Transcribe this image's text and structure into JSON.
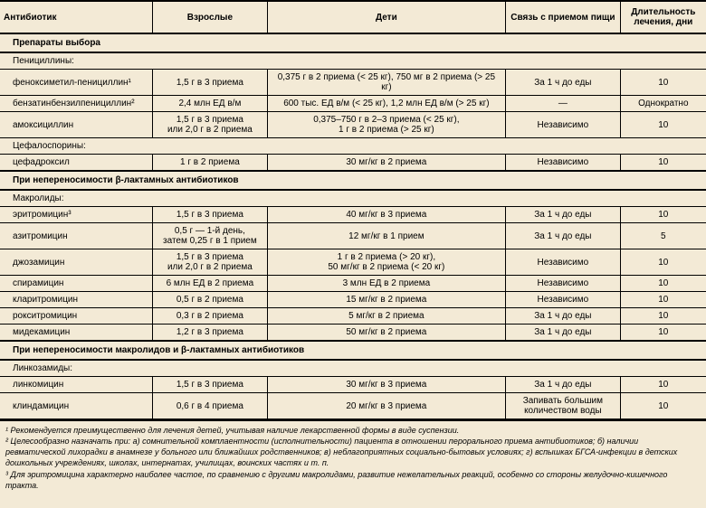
{
  "colors": {
    "background": "#f3ead6",
    "border": "#000000",
    "text": "#000000"
  },
  "headers": {
    "antibiotic": "Антибиотик",
    "adults": "Взрослые",
    "children": "Дети",
    "food": "Связь с приемом пищи",
    "duration": "Длительность лечения, дни"
  },
  "sections": {
    "choice": "Препараты выбора",
    "beta": "При непереносимости β-лактамных антибиотиков",
    "macbeta": "При непереносимости макролидов и β-лактамных антибиотиков"
  },
  "subgroups": {
    "penicillins": "Пенициллины:",
    "cephalo": "Цефалоспорины:",
    "macrolides": "Макролиды:",
    "linco": "Линкозамиды:"
  },
  "rows": {
    "phenoxy": {
      "name": "феноксиметил-пенициллин¹",
      "adults": "1,5 г в 3 приема",
      "children": "0,375 г в 2 приема (< 25 кг), 750 мг в 2 приема (> 25 кг)",
      "food": "За 1 ч до еды",
      "dur": "10"
    },
    "benzathine": {
      "name": "бензатинбензилпенициллин²",
      "adults": "2,4 млн ЕД в/м",
      "children": "600 тыс. ЕД в/м (< 25 кг), 1,2 млн ЕД в/м (> 25 кг)",
      "food": "—",
      "dur": "Однократно"
    },
    "amoxicillin": {
      "name": "амоксициллин",
      "adults": "1,5 г в 3 приема\nили 2,0 г в 2 приема",
      "children": "0,375–750 г в 2–3 приема (< 25 кг),\n1 г в 2 приема (> 25 кг)",
      "food": "Независимо",
      "dur": "10"
    },
    "cefadroxil": {
      "name": "цефадроксил",
      "adults": "1 г в 2 приема",
      "children": "30 мг/кг в 2 приема",
      "food": "Независимо",
      "dur": "10"
    },
    "erythro": {
      "name": "эритромицин³",
      "adults": "1,5 г в 3 приема",
      "children": "40 мг/кг в 3 приема",
      "food": "За 1 ч до еды",
      "dur": "10"
    },
    "azithro": {
      "name": "азитромицин",
      "adults": "0,5 г — 1-й день,\nзатем 0,25 г в 1 прием",
      "children": "12 мг/кг в 1 прием",
      "food": "За 1 ч до еды",
      "dur": "5"
    },
    "josa": {
      "name": "джозамицин",
      "adults": "1,5 г в 3 приема\nили 2,0 г в 2 приема",
      "children": "1 г в 2 приема (> 20 кг),\n50 мг/кг в 2 приема (< 20 кг)",
      "food": "Независимо",
      "dur": "10"
    },
    "spira": {
      "name": "спирамицин",
      "adults": "6 млн ЕД в 2 приема",
      "children": "3 млн ЕД в 2 приема",
      "food": "Независимо",
      "dur": "10"
    },
    "clarithro": {
      "name": "кларитромицин",
      "adults": "0,5 г в 2 приема",
      "children": "15 мг/кг в 2 приема",
      "food": "Независимо",
      "dur": "10"
    },
    "roxithro": {
      "name": "рокситромицин",
      "adults": "0,3 г в 2 приема",
      "children": "5 мг/кг в 2 приема",
      "food": "За 1 ч до еды",
      "dur": "10"
    },
    "mideca": {
      "name": "мидекамицин",
      "adults": "1,2 г в 3 приема",
      "children": "50 мг/кг в 2 приема",
      "food": "За 1 ч до еды",
      "dur": "10"
    },
    "linco": {
      "name": "линкомицин",
      "adults": "1,5 г в 3 приема",
      "children": "30 мг/кг в 3 приема",
      "food": "За 1 ч до еды",
      "dur": "10"
    },
    "clinda": {
      "name": "клиндамицин",
      "adults": "0,6 г в 4 приема",
      "children": "20 мг/кг в 3 приема",
      "food": "Запивать большим\nколичеством воды",
      "dur": "10"
    }
  },
  "footnotes": {
    "f1": "¹ Рекомендуется преимущественно для лечения детей, учитывая наличие лекарственной формы в виде суспензии.",
    "f2": "² Целесообразно назначать при: а) сомнительной комплаентности (исполнительности) пациента в отношении перорального приема антибиотиков; б) наличии ревматической лихорадки в анамнезе у больного или ближайших родственников; в) неблагоприятных социально-бытовых условиях; г) вспышках БГСА-инфекции в детских дошкольных учреждениях, школах, интернатах, училищах, воинских частях и т. п.",
    "f3": "³ Для эритромицина характерно наиболее частое, по сравнению с другими макролидами, развитие нежелательных реакций, особенно со стороны желудочно-кишечного тракта."
  }
}
